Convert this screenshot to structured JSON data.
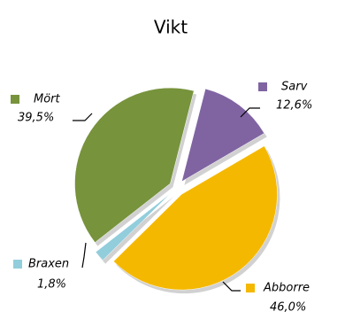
{
  "chart_data": {
    "type": "pie",
    "title": "Vikt",
    "categories": [
      "Mört",
      "Sarv",
      "Abborre",
      "Braxen"
    ],
    "values": [
      39.5,
      12.6,
      46.0,
      1.8
    ],
    "value_labels": [
      "39,5%",
      "12,6%",
      "46,0%",
      "1,8%"
    ],
    "colors": [
      "#77933c",
      "#8064a2",
      "#f5b800",
      "#92cddc"
    ]
  }
}
